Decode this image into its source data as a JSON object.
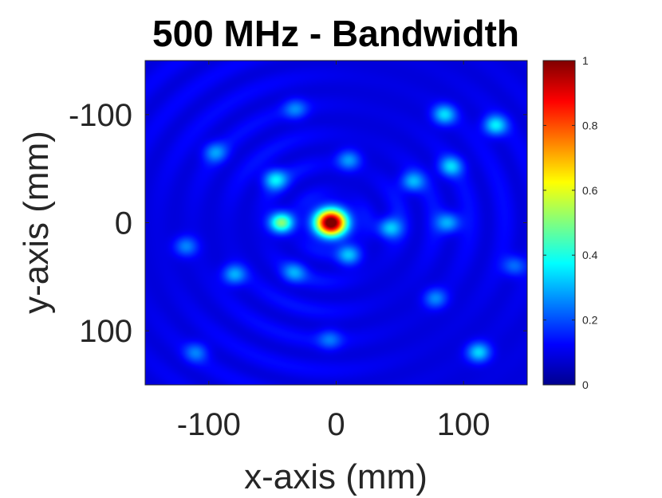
{
  "chart_data": {
    "type": "heatmap",
    "title": "500 MHz - Bandwidth",
    "xlabel": "x-axis (mm)",
    "ylabel": "y-axis (mm)",
    "xlim": [
      -150,
      150
    ],
    "ylim": [
      -150,
      150
    ],
    "y_direction": "reversed",
    "xticks": [
      {
        "value": -100,
        "label": "-100"
      },
      {
        "value": 0,
        "label": "0"
      },
      {
        "value": 100,
        "label": "100"
      }
    ],
    "yticks": [
      {
        "value": -100,
        "label": "-100"
      },
      {
        "value": 0,
        "label": "0"
      },
      {
        "value": 100,
        "label": "100"
      }
    ],
    "colormap": "jet",
    "clim": [
      0,
      1
    ],
    "colorbar_ticks": [
      {
        "value": 0,
        "label": "0"
      },
      {
        "value": 0.2,
        "label": "0.2"
      },
      {
        "value": 0.4,
        "label": "0.4"
      },
      {
        "value": 0.6,
        "label": "0.6"
      },
      {
        "value": 0.8,
        "label": "0.8"
      },
      {
        "value": 1,
        "label": "1"
      }
    ],
    "peak": {
      "x": -4,
      "y": 0,
      "value": 1.0
    },
    "sidelobes": [
      {
        "x": -43,
        "y": 0,
        "value": 0.42
      },
      {
        "x": -48,
        "y": -40,
        "value": 0.24
      },
      {
        "x": 10,
        "y": -58,
        "value": 0.18
      },
      {
        "x": 60,
        "y": -38,
        "value": 0.2
      },
      {
        "x": 42,
        "y": 5,
        "value": 0.22
      },
      {
        "x": 10,
        "y": 30,
        "value": 0.22
      },
      {
        "x": -33,
        "y": 46,
        "value": 0.16
      },
      {
        "x": -80,
        "y": 48,
        "value": 0.2
      },
      {
        "x": -118,
        "y": 22,
        "value": 0.16
      },
      {
        "x": -95,
        "y": -65,
        "value": 0.16
      },
      {
        "x": 90,
        "y": -52,
        "value": 0.22
      },
      {
        "x": 125,
        "y": -90,
        "value": 0.26
      },
      {
        "x": 85,
        "y": -100,
        "value": 0.24
      },
      {
        "x": 88,
        "y": 0,
        "value": 0.2
      },
      {
        "x": 78,
        "y": 70,
        "value": 0.16
      },
      {
        "x": 112,
        "y": 120,
        "value": 0.24
      },
      {
        "x": -32,
        "y": -105,
        "value": 0.14
      },
      {
        "x": -5,
        "y": 108,
        "value": 0.12
      },
      {
        "x": -110,
        "y": 120,
        "value": 0.14
      },
      {
        "x": 140,
        "y": 40,
        "value": 0.14
      }
    ]
  }
}
